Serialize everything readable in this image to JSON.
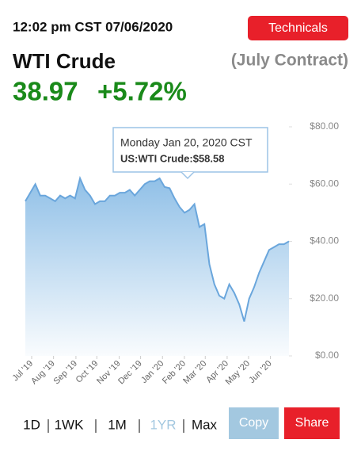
{
  "header": {
    "timestamp": "12:02 pm CST 07/06/2020",
    "technicals_button": "Technicals",
    "title": "WTI Crude",
    "contract": "(July Contract)",
    "price": "38.97",
    "change": "+5.72%"
  },
  "chart_data": {
    "type": "area",
    "color": "#6aa6dc",
    "values": [
      54,
      57,
      60,
      56,
      56,
      55,
      54,
      56,
      55,
      56,
      55,
      62,
      58,
      56,
      53,
      54,
      54,
      56,
      56,
      57,
      57,
      58,
      56,
      58,
      60,
      61,
      61,
      62,
      59,
      58.58,
      55,
      52,
      50,
      51,
      53,
      45,
      46,
      32,
      25,
      21,
      20,
      25,
      22,
      18,
      12,
      20,
      24,
      29,
      33,
      37,
      38,
      39,
      39,
      40
    ],
    "xlim": [
      0,
      53
    ],
    "xticks": [
      {
        "value": 0,
        "label": "Jul '19"
      },
      {
        "value": 4.4,
        "label": "Aug '19"
      },
      {
        "value": 8.9,
        "label": "Sep '19"
      },
      {
        "value": 13.1,
        "label": "Oct '19"
      },
      {
        "value": 17.6,
        "label": "Nov '19"
      },
      {
        "value": 21.9,
        "label": "Dec '19"
      },
      {
        "value": 26.3,
        "label": "Jan '20"
      },
      {
        "value": 30.7,
        "label": "Feb '20"
      },
      {
        "value": 34.9,
        "label": "Mar '20"
      },
      {
        "value": 39.3,
        "label": "Apr '20"
      },
      {
        "value": 43.6,
        "label": "May '20"
      },
      {
        "value": 48,
        "label": "Jun '20"
      }
    ],
    "ylim": [
      0,
      80
    ],
    "yticks": [
      {
        "value": 0,
        "label": "$0.00"
      },
      {
        "value": 20,
        "label": "$20.00"
      },
      {
        "value": 40,
        "label": "$40.00"
      },
      {
        "value": 60,
        "label": "$60.00"
      },
      {
        "value": 80,
        "label": "$80.00"
      }
    ],
    "tooltip": {
      "date": "Monday Jan 20, 2020 CST",
      "value": "US:WTI Crude:$58.58"
    }
  },
  "controls": {
    "ranges": [
      "1D",
      "1WK",
      "1M",
      "1YR",
      "Max"
    ],
    "copy": "Copy",
    "share": "Share"
  }
}
